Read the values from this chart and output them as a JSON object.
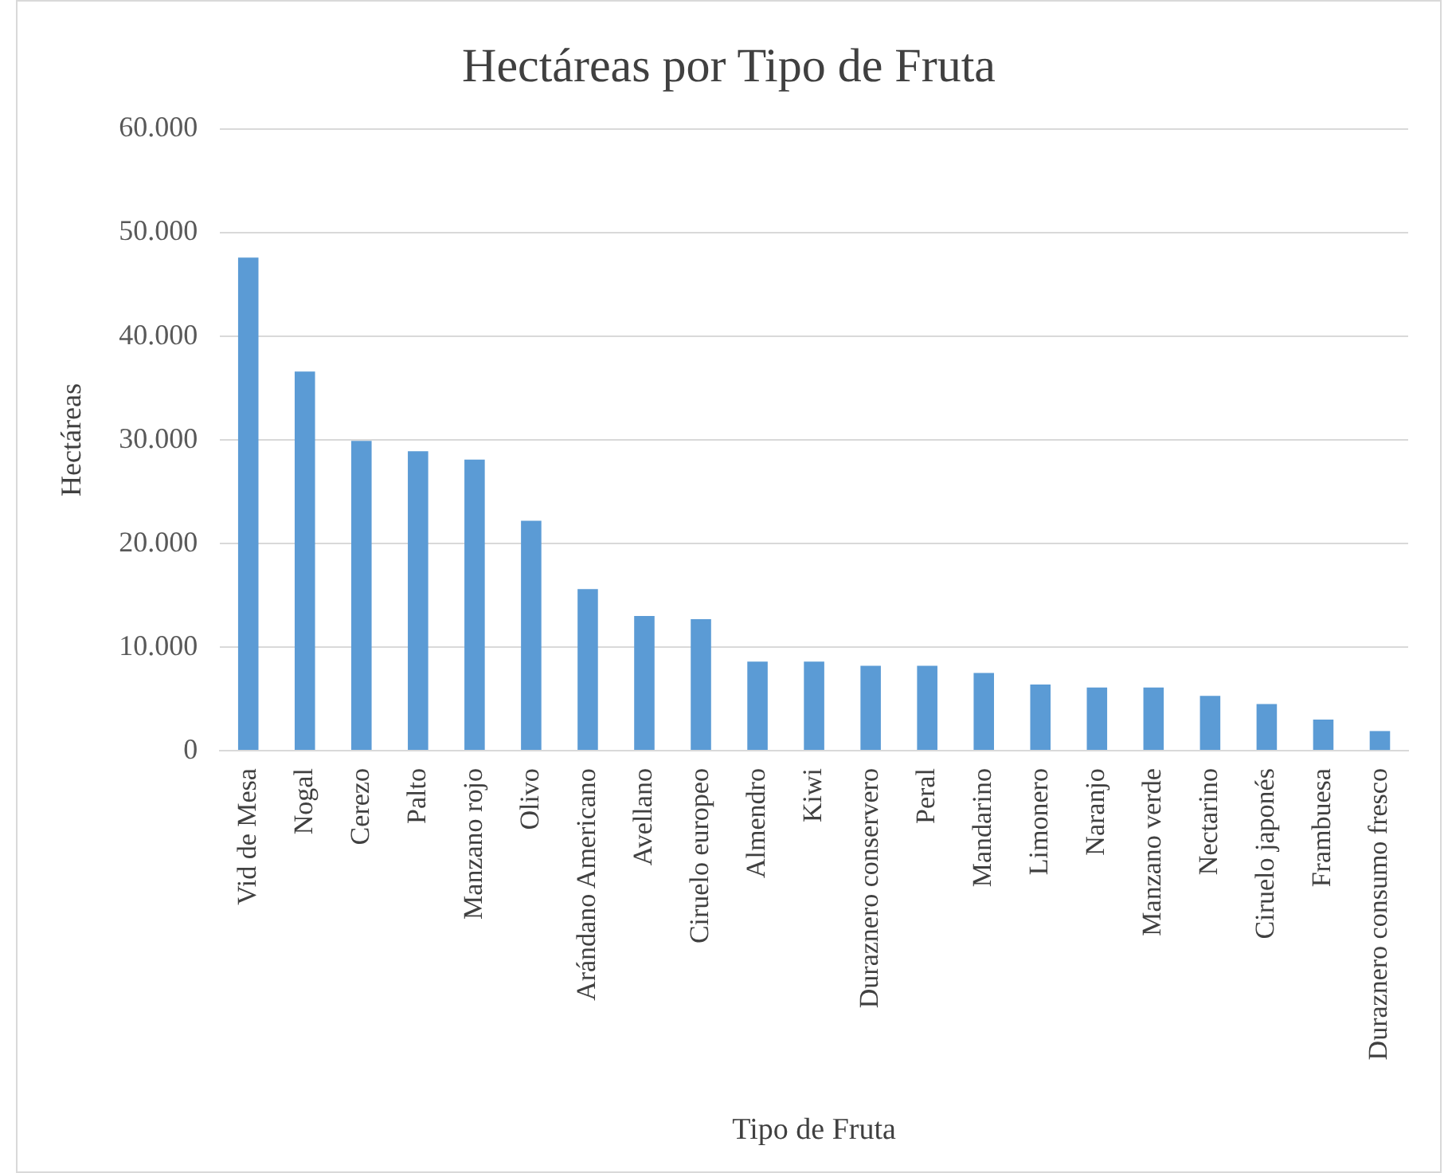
{
  "chart_data": {
    "type": "bar",
    "title": "Hectáreas por Tipo de Fruta",
    "xlabel": "Tipo de Fruta",
    "ylabel": "Hectáreas",
    "categories": [
      "Vid de Mesa",
      "Nogal",
      "Cerezo",
      "Palto",
      "Manzano rojo",
      "Olivo",
      "Arándano Americano",
      "Avellano",
      "Ciruelo europeo",
      "Almendro",
      "Kiwi",
      "Duraznero conservero",
      "Peral",
      "Mandarino",
      "Limonero",
      "Naranjo",
      "Manzano verde",
      "Nectarino",
      "Ciruelo japonés",
      "Frambuesa",
      "Duraznero consumo fresco"
    ],
    "values": [
      47600,
      36600,
      29900,
      28900,
      28100,
      22200,
      15600,
      13000,
      12700,
      8600,
      8600,
      8200,
      8200,
      7500,
      6400,
      6100,
      6100,
      5300,
      4500,
      3000,
      1900
    ],
    "color": "#5b9bd5",
    "ylim": [
      0,
      60000
    ],
    "yticks": [
      {
        "value": 0,
        "label": "0"
      },
      {
        "value": 10000,
        "label": "10.000"
      },
      {
        "value": 20000,
        "label": "20.000"
      },
      {
        "value": 30000,
        "label": "30.000"
      },
      {
        "value": 40000,
        "label": "40.000"
      },
      {
        "value": 50000,
        "label": "50.000"
      },
      {
        "value": 60000,
        "label": "60.000"
      }
    ],
    "grid": "y"
  }
}
